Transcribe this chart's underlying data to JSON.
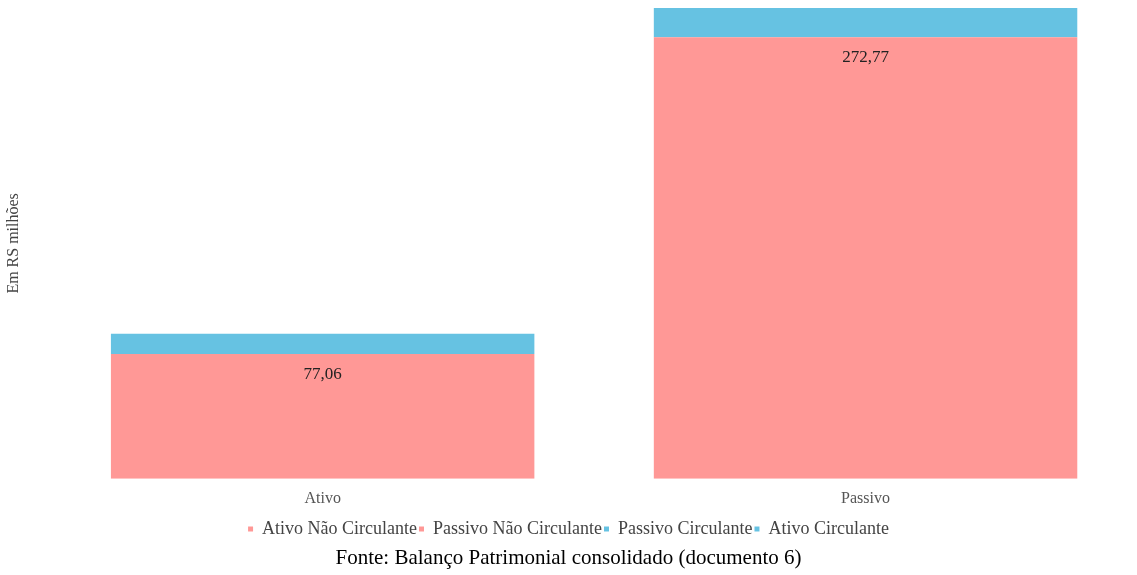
{
  "chart_data": {
    "type": "bar",
    "stacked": true,
    "ylabel": "Em RS milhões",
    "categories": [
      "Ativo",
      "Passivo"
    ],
    "series": [
      {
        "name": "Ativo Não Circulante",
        "color": "#ff9896",
        "values": [
          77.06,
          null
        ],
        "value_labels": [
          "77,06",
          null
        ]
      },
      {
        "name": "Passivo Não Circulante",
        "color": "#ff9896",
        "values": [
          null,
          272.77
        ],
        "value_labels": [
          null,
          "272,77"
        ]
      },
      {
        "name": "Passivo Circulante",
        "color": "#66c2e2",
        "values": [
          null,
          18
        ]
      },
      {
        "name": "Ativo Circulante",
        "color": "#66c2e2",
        "values": [
          12.5,
          null
        ]
      }
    ],
    "legend": "bottom",
    "grid": false,
    "annotations": [
      "Fonte: Balanço Patrimonial consolidado (documento 6)"
    ]
  }
}
